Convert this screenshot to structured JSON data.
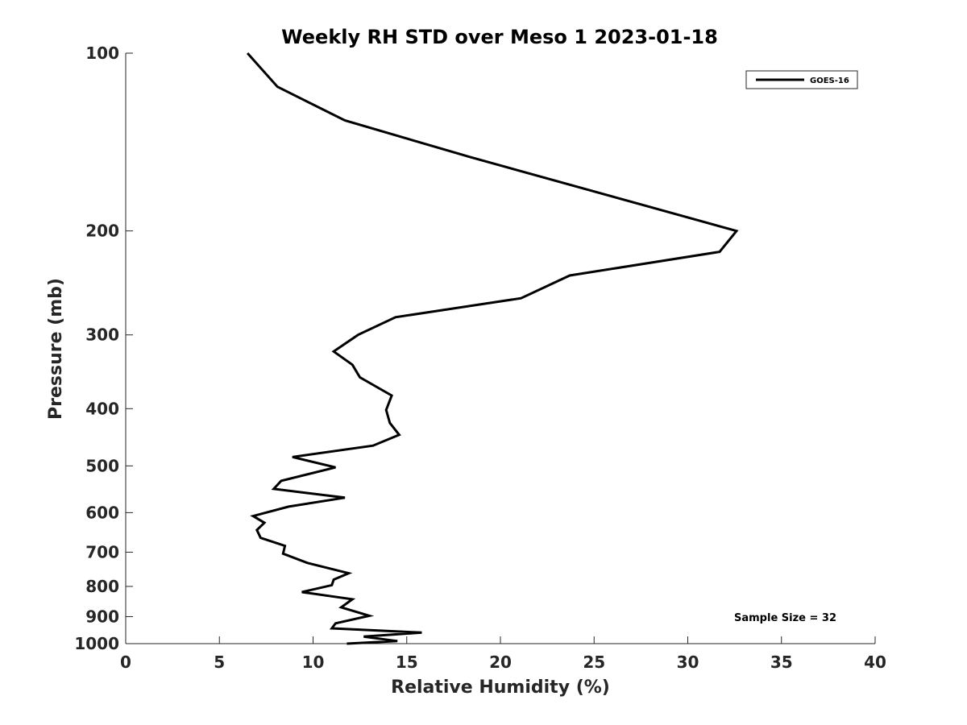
{
  "chart_data": {
    "type": "line",
    "title": "Weekly RH STD over Meso 1 2023-01-18",
    "xlabel": "Relative Humidity (%)",
    "ylabel": "Pressure (mb)",
    "xlim": [
      0,
      40
    ],
    "ylim": [
      100,
      1000
    ],
    "y_scale": "log",
    "y_reversed": true,
    "xticks": [
      "0",
      "5",
      "10",
      "15",
      "20",
      "25",
      "30",
      "35",
      "40"
    ],
    "yticks": [
      "100",
      "200",
      "300",
      "400",
      "500",
      "600",
      "700",
      "800",
      "900",
      "1000"
    ],
    "grid": false,
    "legend_position": "top-right",
    "annotation": "Sample Size = 32",
    "series": [
      {
        "name": "GOES-16",
        "color": "#000000",
        "x": [
          6.5,
          8.1,
          11.7,
          18.4,
          32.6,
          31.7,
          23.7,
          21.1,
          14.4,
          12.4,
          11.1,
          12.1,
          12.5,
          14.2,
          13.9,
          14.1,
          14.6,
          13.2,
          8.9,
          11.2,
          8.3,
          7.9,
          11.7,
          8.7,
          6.8,
          7.4,
          7.0,
          7.2,
          8.5,
          8.4,
          9.7,
          11.9,
          11.1,
          11.0,
          9.4,
          12.1,
          11.5,
          13.0,
          11.2,
          11.0,
          15.8,
          12.7,
          14.5,
          11.8
        ],
        "y": [
          100,
          114,
          130,
          150,
          200,
          217,
          238,
          260,
          280,
          300,
          320,
          337,
          354,
          380,
          402,
          423,
          443,
          462,
          483,
          503,
          530,
          547,
          566,
          586,
          608,
          624,
          642,
          662,
          683,
          704,
          730,
          760,
          779,
          796,
          818,
          841,
          868,
          897,
          924,
          942,
          958,
          973,
          990,
          1000
        ]
      }
    ]
  }
}
